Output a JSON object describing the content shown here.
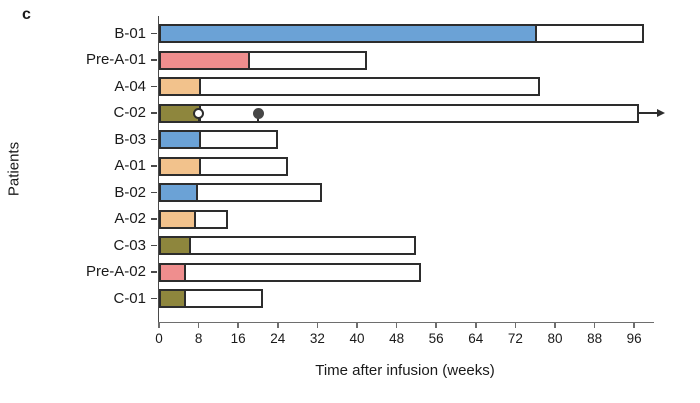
{
  "panel_label": "c",
  "colors": {
    "blue": "#6BA2D6",
    "pink": "#EF8E8E",
    "tan": "#F2C28C",
    "olive": "#8E863D",
    "bar_border": "#2D2D2D",
    "marker_filled": "#464646",
    "marker_open_fill": "#FFFFFF"
  },
  "chart_data": {
    "type": "bar",
    "orientation": "horizontal",
    "xlabel": "Time after infusion (weeks)",
    "ylabel": "Patients",
    "xlim": [
      0,
      100
    ],
    "xticks": [
      0,
      8,
      16,
      24,
      32,
      40,
      48,
      56,
      64,
      72,
      80,
      88,
      96
    ],
    "grid": false,
    "legend": "none",
    "patients": [
      {
        "label": "B-01",
        "color_key": "blue",
        "colored_weeks": 76,
        "total_weeks": 98,
        "ongoing": false,
        "markers": []
      },
      {
        "label": "Pre-A-01",
        "color_key": "pink",
        "colored_weeks": 18,
        "total_weeks": 42,
        "ongoing": false,
        "markers": []
      },
      {
        "label": "A-04",
        "color_key": "tan",
        "colored_weeks": 8,
        "total_weeks": 77,
        "ongoing": false,
        "markers": []
      },
      {
        "label": "C-02",
        "color_key": "olive",
        "colored_weeks": 8,
        "total_weeks": 97,
        "ongoing": true,
        "markers": [
          {
            "type": "open-circle",
            "week": 8
          },
          {
            "type": "filled-circle",
            "week": 20
          }
        ]
      },
      {
        "label": "B-03",
        "color_key": "blue",
        "colored_weeks": 8,
        "total_weeks": 24,
        "ongoing": false,
        "markers": []
      },
      {
        "label": "A-01",
        "color_key": "tan",
        "colored_weeks": 8,
        "total_weeks": 26,
        "ongoing": false,
        "markers": []
      },
      {
        "label": "B-02",
        "color_key": "blue",
        "colored_weeks": 7.5,
        "total_weeks": 33,
        "ongoing": false,
        "markers": []
      },
      {
        "label": "A-02",
        "color_key": "tan",
        "colored_weeks": 7,
        "total_weeks": 14,
        "ongoing": false,
        "markers": []
      },
      {
        "label": "C-03",
        "color_key": "olive",
        "colored_weeks": 6,
        "total_weeks": 52,
        "ongoing": false,
        "markers": []
      },
      {
        "label": "Pre-A-02",
        "color_key": "pink",
        "colored_weeks": 5,
        "total_weeks": 53,
        "ongoing": false,
        "markers": []
      },
      {
        "label": "C-01",
        "color_key": "olive",
        "colored_weeks": 5,
        "total_weeks": 21,
        "ongoing": false,
        "markers": []
      }
    ]
  }
}
